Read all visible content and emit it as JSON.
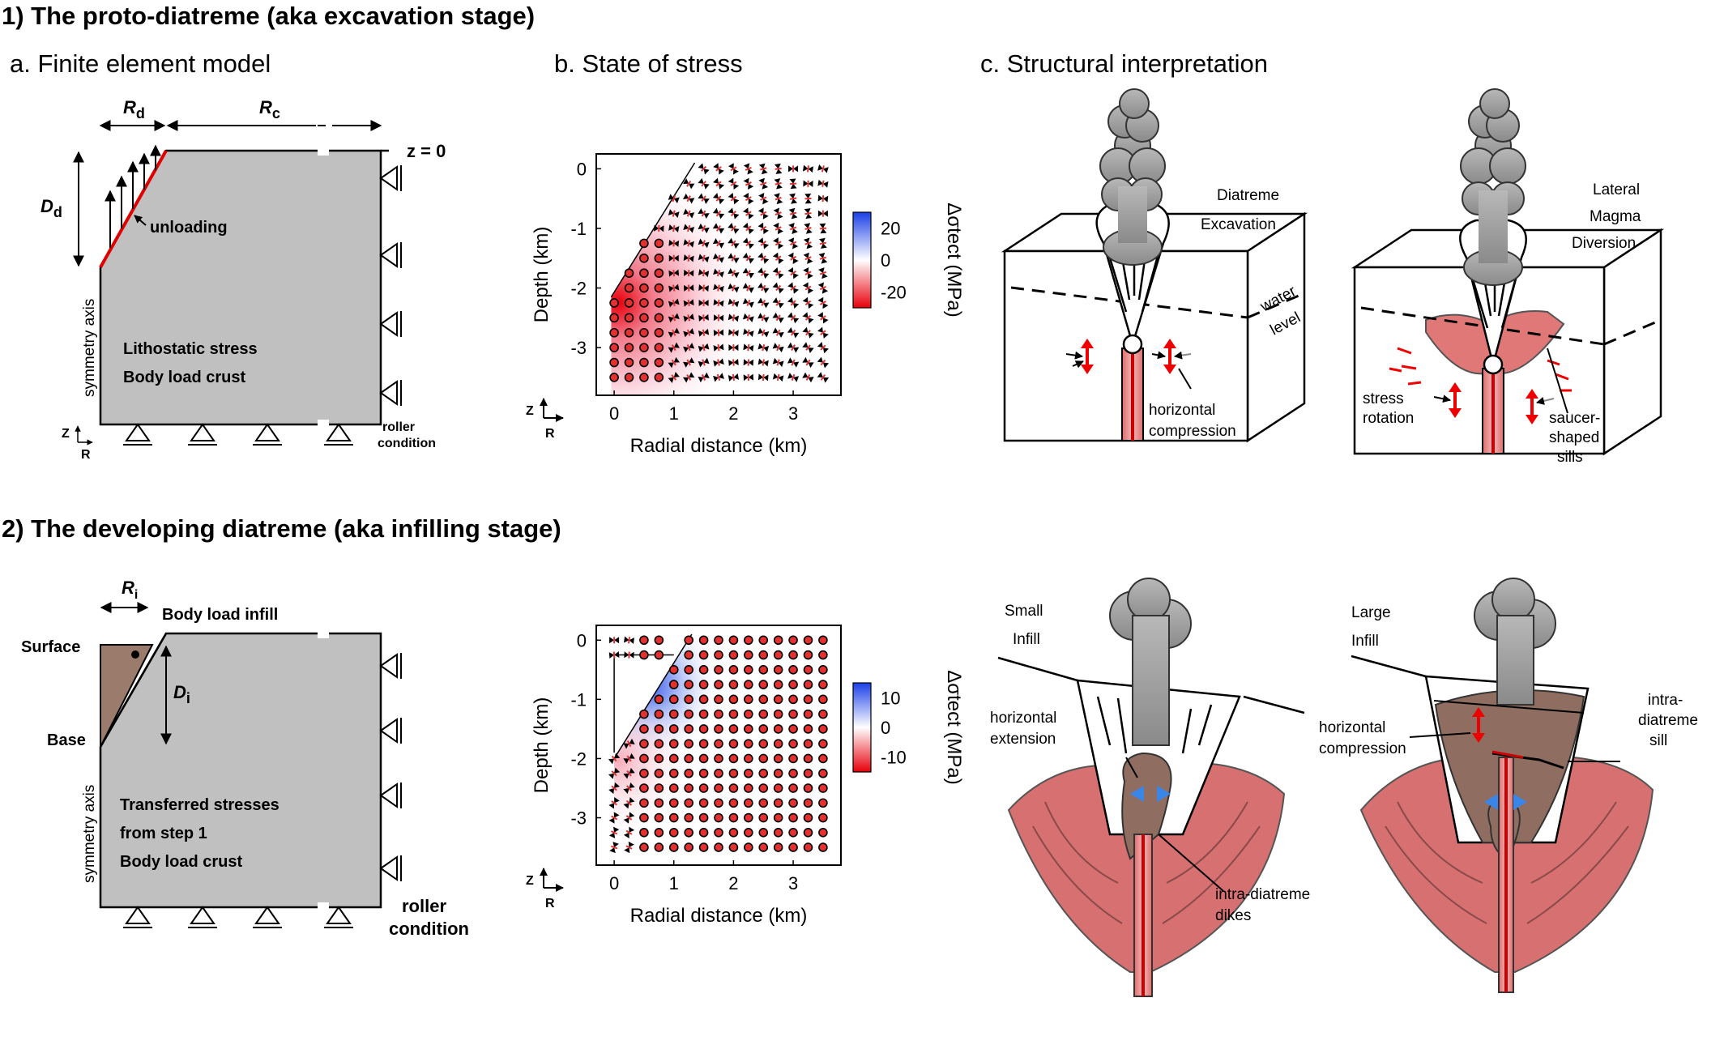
{
  "section1": {
    "title": "1) The proto-diatreme (aka excavation stage)"
  },
  "section2": {
    "title": "2) The developing diatreme (aka infilling stage)"
  },
  "panel_a": {
    "title": "a. Finite element model",
    "Rd_label": "R",
    "Rd_sub": "d",
    "Rc_label": "R",
    "Rc_sub": "c",
    "Dd_label": "D",
    "Dd_sub": "d",
    "z0_label": "z = 0",
    "unloading_label": "unloading",
    "body_line1": "Lithostatic stress",
    "body_line2": "Body load crust",
    "symmetry_axis": "symmetry axis",
    "roller_line1": "roller",
    "roller_line2": "condition",
    "z_axis": "Z",
    "r_axis": "R"
  },
  "panel_a2": {
    "Ri_label": "R",
    "Ri_sub": "i",
    "Di_label": "D",
    "Di_sub": "i",
    "infill_label": "Body load infill",
    "surface_label": "Surface",
    "base_label": "Base",
    "body_line1": "Transferred stresses",
    "body_line2": "from step 1",
    "body_line3": "Body load crust",
    "symmetry_axis": "symmetry axis",
    "roller_line1": "roller",
    "roller_line2": "condition"
  },
  "panel_b": {
    "title": "b. State of stress"
  },
  "panel_c": {
    "title": "c. Structural interpretation",
    "diatreme_line1": "Diatreme",
    "diatreme_line2": "Excavation",
    "lateral_line1": "Lateral",
    "lateral_line2": "Magma",
    "lateral_line3": "Diversion",
    "water_line1": "water",
    "water_line2": "level",
    "hcomp_line1": "horizontal",
    "hcomp_line2": "compression",
    "stress_line1": "stress",
    "stress_line2": "rotation",
    "saucer_line1": "saucer-",
    "saucer_line2": "shaped",
    "saucer_line3": "sills",
    "small_line1": "Small",
    "small_line2": "Infill",
    "large_line1": "Large",
    "large_line2": "Infill",
    "hext_line1": "horizontal",
    "hext_line2": "extension",
    "hcomp2_line1": "horizontal",
    "hcomp2_line2": "compression",
    "dikes_line1": "intra-diatreme",
    "dikes_line2": "dikes",
    "sill_line1": "intra-",
    "sill_line2": "diatreme",
    "sill_line3": "sill"
  },
  "chart_data": [
    {
      "type": "heatmap",
      "title": "",
      "xlabel": "Radial distance (km)",
      "ylabel": "Depth (km)",
      "xlim": [
        -0.3,
        3.8
      ],
      "ylim": [
        -3.8,
        0.25
      ],
      "xticks": [
        0,
        1,
        2,
        3
      ],
      "yticks": [
        0,
        -1,
        -2,
        -3
      ],
      "colorbar_label": "Δσtect (MPa)",
      "colorbar_ticks": [
        20,
        0,
        -20
      ],
      "colorbar_range": [
        -30,
        30
      ],
      "colormap": [
        "#e8000b",
        "#ffffff",
        "#1a3fe8"
      ],
      "surface_line": [
        [
          -0.05,
          -2.15
        ],
        [
          1.35,
          0.1
        ]
      ],
      "grid_x": [
        0.0,
        0.25,
        0.5,
        0.75,
        1.0,
        1.25,
        1.5,
        1.75,
        2.0,
        2.25,
        2.5,
        2.75,
        3.0,
        3.25,
        3.5
      ],
      "grid_y": [
        0.0,
        -0.25,
        -0.5,
        -0.75,
        -1.0,
        -1.25,
        -1.5,
        -1.75,
        -2.0,
        -2.25,
        -2.5,
        -2.75,
        -3.0,
        -3.25,
        -3.5
      ],
      "axis_arrows": {
        "z": "Z",
        "r": "R"
      }
    },
    {
      "type": "heatmap",
      "title": "",
      "xlabel": "Radial distance (km)",
      "ylabel": "Depth (km)",
      "xlim": [
        -0.3,
        3.8
      ],
      "ylim": [
        -3.8,
        0.25
      ],
      "xticks": [
        0,
        1,
        2,
        3
      ],
      "yticks": [
        0,
        -1,
        -2,
        -3
      ],
      "colorbar_label": "Δσtect (MPa)",
      "colorbar_ticks": [
        10,
        0,
        -10
      ],
      "colorbar_range": [
        -15,
        15
      ],
      "colormap": [
        "#e8000b",
        "#ffffff",
        "#1a3fe8"
      ],
      "surface_line": [
        [
          0.0,
          -2.0
        ],
        [
          1.3,
          0.1
        ]
      ],
      "grid_x": [
        0.0,
        0.25,
        0.5,
        0.75,
        1.0,
        1.25,
        1.5,
        1.75,
        2.0,
        2.25,
        2.5,
        2.75,
        3.0,
        3.25,
        3.5
      ],
      "grid_y": [
        0.0,
        -0.25,
        -0.5,
        -0.75,
        -1.0,
        -1.25,
        -1.5,
        -1.75,
        -2.0,
        -2.25,
        -2.5,
        -2.75,
        -3.0,
        -3.25,
        -3.5
      ],
      "axis_arrows": {
        "z": "Z",
        "r": "R"
      }
    }
  ]
}
